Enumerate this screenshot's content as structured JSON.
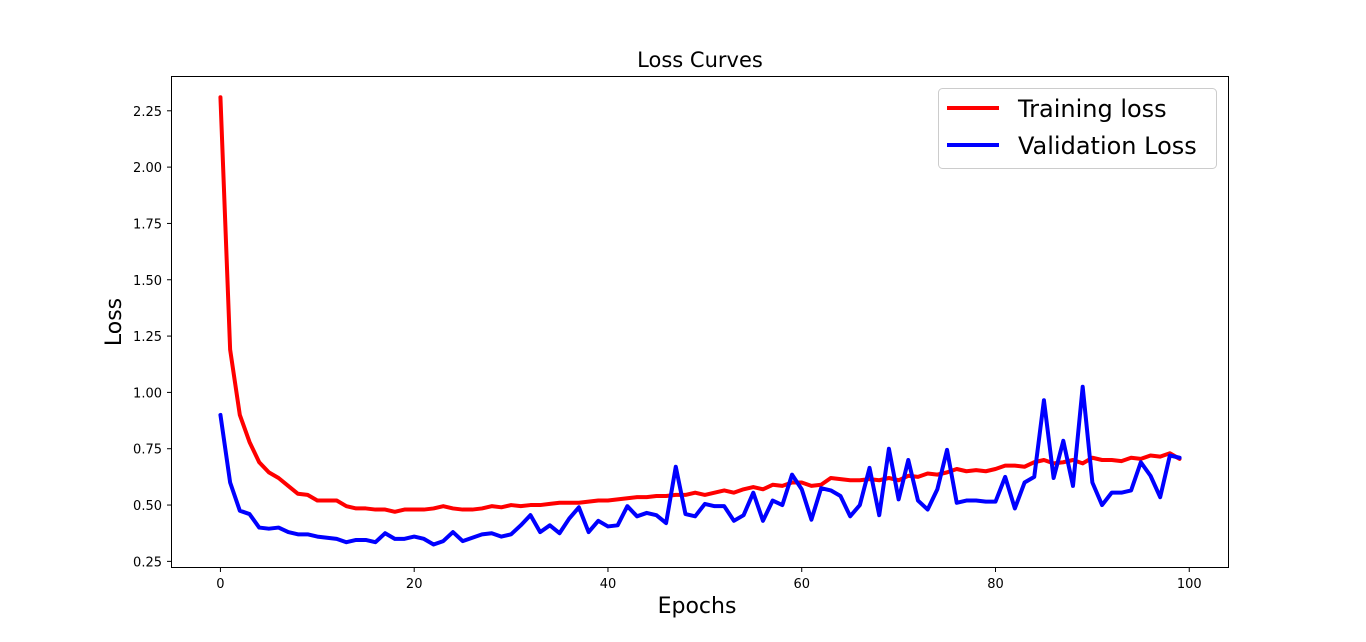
{
  "chart_data": {
    "type": "line",
    "title": "Loss Curves",
    "xlabel": "Epochs",
    "ylabel": "Loss",
    "xlim": [
      -5,
      104
    ],
    "ylim": [
      0.225,
      2.4
    ],
    "xticks": [
      0,
      20,
      40,
      60,
      80,
      100
    ],
    "yticks": [
      0.25,
      0.5,
      0.75,
      1.0,
      1.25,
      1.5,
      1.75,
      2.0,
      2.25
    ],
    "ytick_labels": [
      "0.25",
      "0.50",
      "0.75",
      "1.00",
      "1.25",
      "1.50",
      "1.75",
      "2.00",
      "2.25"
    ],
    "grid": false,
    "legend_position": "top-right",
    "x": [
      0,
      1,
      2,
      3,
      4,
      5,
      6,
      7,
      8,
      9,
      10,
      11,
      12,
      13,
      14,
      15,
      16,
      17,
      18,
      19,
      20,
      21,
      22,
      23,
      24,
      25,
      26,
      27,
      28,
      29,
      30,
      31,
      32,
      33,
      34,
      35,
      36,
      37,
      38,
      39,
      40,
      41,
      42,
      43,
      44,
      45,
      46,
      47,
      48,
      49,
      50,
      51,
      52,
      53,
      54,
      55,
      56,
      57,
      58,
      59,
      60,
      61,
      62,
      63,
      64,
      65,
      66,
      67,
      68,
      69,
      70,
      71,
      72,
      73,
      74,
      75,
      76,
      77,
      78,
      79,
      80,
      81,
      82,
      83,
      84,
      85,
      86,
      87,
      88,
      89,
      90,
      91,
      92,
      93,
      94,
      95,
      96,
      97,
      98,
      99
    ],
    "series": [
      {
        "name": "Training loss",
        "color": "#ff0000",
        "values": [
          2.31,
          1.19,
          0.9,
          0.78,
          0.69,
          0.645,
          0.62,
          0.585,
          0.55,
          0.545,
          0.52,
          0.52,
          0.52,
          0.495,
          0.485,
          0.485,
          0.48,
          0.48,
          0.47,
          0.48,
          0.48,
          0.48,
          0.485,
          0.495,
          0.485,
          0.48,
          0.48,
          0.485,
          0.495,
          0.49,
          0.5,
          0.495,
          0.5,
          0.5,
          0.505,
          0.51,
          0.51,
          0.51,
          0.515,
          0.52,
          0.52,
          0.525,
          0.53,
          0.535,
          0.535,
          0.54,
          0.54,
          0.545,
          0.545,
          0.555,
          0.545,
          0.555,
          0.565,
          0.555,
          0.57,
          0.58,
          0.57,
          0.59,
          0.585,
          0.6,
          0.6,
          0.585,
          0.59,
          0.62,
          0.615,
          0.61,
          0.61,
          0.615,
          0.61,
          0.62,
          0.61,
          0.63,
          0.625,
          0.64,
          0.635,
          0.645,
          0.66,
          0.65,
          0.655,
          0.65,
          0.66,
          0.675,
          0.675,
          0.67,
          0.69,
          0.7,
          0.685,
          0.69,
          0.7,
          0.685,
          0.71,
          0.7,
          0.7,
          0.695,
          0.71,
          0.705,
          0.72,
          0.715,
          0.73,
          0.705
        ]
      },
      {
        "name": "Validation Loss",
        "color": "#0000ff",
        "values": [
          0.9,
          0.6,
          0.475,
          0.46,
          0.4,
          0.395,
          0.4,
          0.38,
          0.37,
          0.37,
          0.36,
          0.355,
          0.35,
          0.335,
          0.345,
          0.345,
          0.335,
          0.375,
          0.35,
          0.35,
          0.36,
          0.35,
          0.325,
          0.34,
          0.38,
          0.34,
          0.355,
          0.37,
          0.375,
          0.36,
          0.37,
          0.41,
          0.455,
          0.38,
          0.41,
          0.375,
          0.44,
          0.49,
          0.38,
          0.43,
          0.405,
          0.41,
          0.495,
          0.45,
          0.465,
          0.455,
          0.42,
          0.67,
          0.46,
          0.45,
          0.505,
          0.495,
          0.495,
          0.43,
          0.455,
          0.555,
          0.43,
          0.52,
          0.5,
          0.635,
          0.57,
          0.435,
          0.575,
          0.565,
          0.54,
          0.45,
          0.5,
          0.665,
          0.455,
          0.75,
          0.525,
          0.7,
          0.52,
          0.48,
          0.57,
          0.745,
          0.51,
          0.52,
          0.52,
          0.515,
          0.515,
          0.625,
          0.485,
          0.6,
          0.625,
          0.965,
          0.62,
          0.785,
          0.585,
          1.025,
          0.6,
          0.5,
          0.555,
          0.555,
          0.565,
          0.69,
          0.63,
          0.535,
          0.72,
          0.71
        ]
      }
    ]
  }
}
